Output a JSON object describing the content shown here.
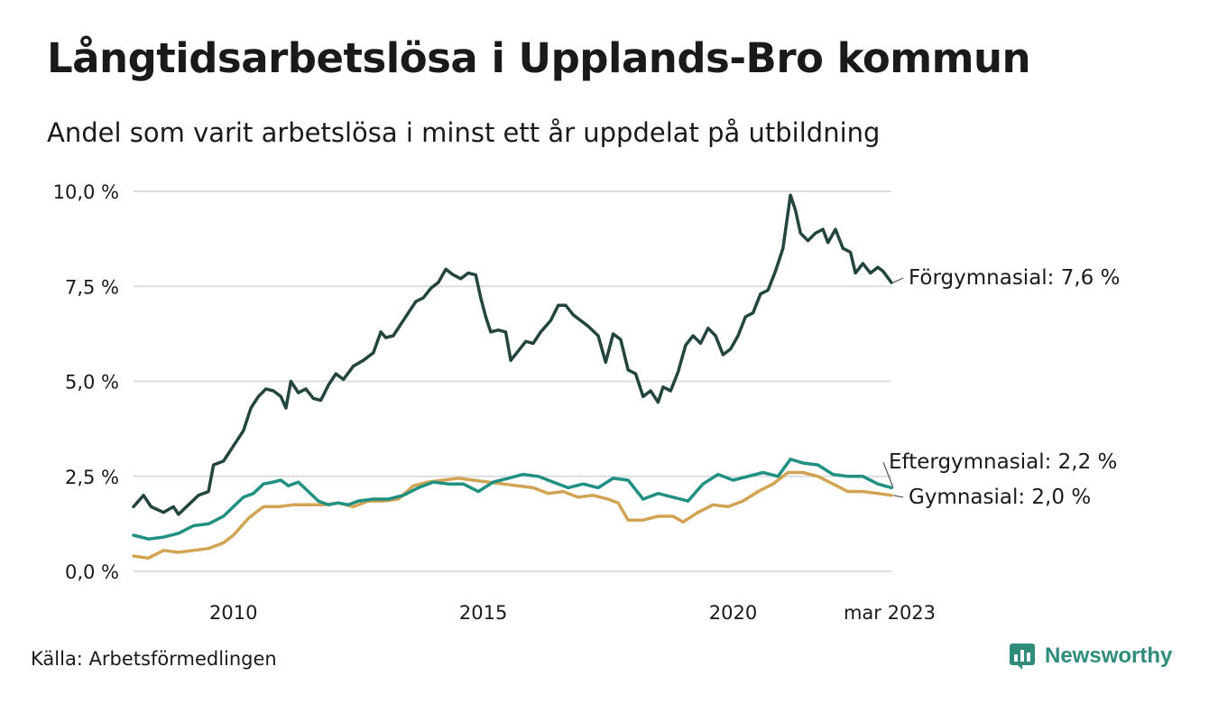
{
  "title": "Långtidsarbetslösa i Upplands-Bro kommun",
  "subtitle": "Andel som varit arbetslösa i minst ett år uppdelat på utbildning",
  "source": "Källa: Arbetsförmedlingen",
  "brand": "Newsworthy",
  "colors": {
    "forgymnasial": "#22453f",
    "eftergymnasial": "#1f9082",
    "gymnasial": "#d1a352",
    "grid": "#dddddd",
    "brand": "#2f8c7b"
  },
  "chart_data": {
    "type": "line",
    "y_ticks": [
      "0,0 %",
      "2,5 %",
      "5,0 %",
      "7,5 %",
      "10,0 %"
    ],
    "y_tick_values": [
      0,
      2.5,
      5,
      7.5,
      10
    ],
    "x_ticks": [
      "2010",
      "2015",
      "2020",
      "mar 2023"
    ],
    "x_tick_values": [
      2010.0,
      2015.0,
      2020.0,
      2023.17
    ],
    "xlim": [
      2008.0,
      2023.17
    ],
    "ylim": [
      0,
      10
    ],
    "grid": true,
    "series": [
      {
        "name": "Förgymnasial",
        "color_key": "forgymnasial",
        "end_label": "Förgymnasial: 7,6 %",
        "points": [
          [
            2008.0,
            1.7
          ],
          [
            2008.2,
            2.0
          ],
          [
            2008.35,
            1.7
          ],
          [
            2008.6,
            1.55
          ],
          [
            2008.8,
            1.7
          ],
          [
            2008.9,
            1.5
          ],
          [
            2009.1,
            1.75
          ],
          [
            2009.3,
            2.0
          ],
          [
            2009.5,
            2.1
          ],
          [
            2009.6,
            2.8
          ],
          [
            2009.8,
            2.9
          ],
          [
            2010.0,
            3.3
          ],
          [
            2010.2,
            3.7
          ],
          [
            2010.35,
            4.3
          ],
          [
            2010.5,
            4.6
          ],
          [
            2010.65,
            4.8
          ],
          [
            2010.8,
            4.75
          ],
          [
            2010.95,
            4.6
          ],
          [
            2011.05,
            4.3
          ],
          [
            2011.15,
            5.0
          ],
          [
            2011.3,
            4.7
          ],
          [
            2011.45,
            4.8
          ],
          [
            2011.6,
            4.55
          ],
          [
            2011.75,
            4.5
          ],
          [
            2011.9,
            4.9
          ],
          [
            2012.05,
            5.2
          ],
          [
            2012.2,
            5.05
          ],
          [
            2012.4,
            5.4
          ],
          [
            2012.6,
            5.55
          ],
          [
            2012.8,
            5.75
          ],
          [
            2012.95,
            6.3
          ],
          [
            2013.05,
            6.15
          ],
          [
            2013.2,
            6.2
          ],
          [
            2013.35,
            6.5
          ],
          [
            2013.5,
            6.8
          ],
          [
            2013.65,
            7.1
          ],
          [
            2013.8,
            7.2
          ],
          [
            2013.95,
            7.45
          ],
          [
            2014.1,
            7.6
          ],
          [
            2014.25,
            7.95
          ],
          [
            2014.4,
            7.8
          ],
          [
            2014.55,
            7.7
          ],
          [
            2014.7,
            7.85
          ],
          [
            2014.85,
            7.8
          ],
          [
            2014.95,
            7.2
          ],
          [
            2015.05,
            6.7
          ],
          [
            2015.15,
            6.3
          ],
          [
            2015.3,
            6.35
          ],
          [
            2015.45,
            6.3
          ],
          [
            2015.55,
            5.55
          ],
          [
            2015.7,
            5.8
          ],
          [
            2015.85,
            6.05
          ],
          [
            2016.0,
            6.0
          ],
          [
            2016.15,
            6.3
          ],
          [
            2016.35,
            6.6
          ],
          [
            2016.5,
            7.0
          ],
          [
            2016.65,
            7.0
          ],
          [
            2016.8,
            6.75
          ],
          [
            2016.95,
            6.6
          ],
          [
            2017.1,
            6.45
          ],
          [
            2017.3,
            6.2
          ],
          [
            2017.45,
            5.5
          ],
          [
            2017.6,
            6.25
          ],
          [
            2017.75,
            6.1
          ],
          [
            2017.9,
            5.3
          ],
          [
            2018.05,
            5.2
          ],
          [
            2018.2,
            4.6
          ],
          [
            2018.35,
            4.75
          ],
          [
            2018.5,
            4.45
          ],
          [
            2018.6,
            4.85
          ],
          [
            2018.75,
            4.75
          ],
          [
            2018.9,
            5.25
          ],
          [
            2019.05,
            5.95
          ],
          [
            2019.2,
            6.2
          ],
          [
            2019.35,
            6.0
          ],
          [
            2019.5,
            6.4
          ],
          [
            2019.65,
            6.2
          ],
          [
            2019.8,
            5.7
          ],
          [
            2019.95,
            5.85
          ],
          [
            2020.1,
            6.2
          ],
          [
            2020.25,
            6.7
          ],
          [
            2020.4,
            6.8
          ],
          [
            2020.55,
            7.3
          ],
          [
            2020.7,
            7.4
          ],
          [
            2020.85,
            7.9
          ],
          [
            2021.0,
            8.5
          ],
          [
            2021.15,
            9.9
          ],
          [
            2021.25,
            9.5
          ],
          [
            2021.35,
            8.9
          ],
          [
            2021.5,
            8.7
          ],
          [
            2021.65,
            8.9
          ],
          [
            2021.8,
            9.0
          ],
          [
            2021.9,
            8.65
          ],
          [
            2022.05,
            9.0
          ],
          [
            2022.2,
            8.5
          ],
          [
            2022.35,
            8.4
          ],
          [
            2022.45,
            7.85
          ],
          [
            2022.6,
            8.1
          ],
          [
            2022.75,
            7.85
          ],
          [
            2022.9,
            8.0
          ],
          [
            2023.0,
            7.9
          ],
          [
            2023.17,
            7.6
          ]
        ]
      },
      {
        "name": "Eftergymnasial",
        "color_key": "eftergymnasial",
        "end_label": "Eftergymnasial: 2,2 %",
        "points": [
          [
            2008.0,
            0.95
          ],
          [
            2008.3,
            0.85
          ],
          [
            2008.6,
            0.9
          ],
          [
            2008.9,
            1.0
          ],
          [
            2009.2,
            1.2
          ],
          [
            2009.5,
            1.25
          ],
          [
            2009.8,
            1.45
          ],
          [
            2010.0,
            1.7
          ],
          [
            2010.2,
            1.95
          ],
          [
            2010.4,
            2.05
          ],
          [
            2010.6,
            2.3
          ],
          [
            2010.8,
            2.35
          ],
          [
            2010.95,
            2.4
          ],
          [
            2011.1,
            2.25
          ],
          [
            2011.3,
            2.35
          ],
          [
            2011.5,
            2.1
          ],
          [
            2011.7,
            1.85
          ],
          [
            2011.9,
            1.75
          ],
          [
            2012.1,
            1.8
          ],
          [
            2012.3,
            1.75
          ],
          [
            2012.5,
            1.85
          ],
          [
            2012.8,
            1.9
          ],
          [
            2013.1,
            1.9
          ],
          [
            2013.4,
            2.0
          ],
          [
            2013.7,
            2.2
          ],
          [
            2014.0,
            2.35
          ],
          [
            2014.3,
            2.3
          ],
          [
            2014.6,
            2.3
          ],
          [
            2014.9,
            2.1
          ],
          [
            2015.2,
            2.35
          ],
          [
            2015.5,
            2.45
          ],
          [
            2015.8,
            2.55
          ],
          [
            2016.1,
            2.5
          ],
          [
            2016.4,
            2.35
          ],
          [
            2016.7,
            2.2
          ],
          [
            2017.0,
            2.3
          ],
          [
            2017.3,
            2.2
          ],
          [
            2017.6,
            2.45
          ],
          [
            2017.9,
            2.4
          ],
          [
            2018.2,
            1.9
          ],
          [
            2018.5,
            2.05
          ],
          [
            2018.8,
            1.95
          ],
          [
            2019.1,
            1.85
          ],
          [
            2019.4,
            2.3
          ],
          [
            2019.7,
            2.55
          ],
          [
            2020.0,
            2.4
          ],
          [
            2020.3,
            2.5
          ],
          [
            2020.6,
            2.6
          ],
          [
            2020.9,
            2.5
          ],
          [
            2021.15,
            2.95
          ],
          [
            2021.4,
            2.85
          ],
          [
            2021.7,
            2.8
          ],
          [
            2022.0,
            2.55
          ],
          [
            2022.3,
            2.5
          ],
          [
            2022.6,
            2.5
          ],
          [
            2022.9,
            2.3
          ],
          [
            2023.17,
            2.2
          ]
        ]
      },
      {
        "name": "Gymnasial",
        "color_key": "gymnasial",
        "end_label": "Gymnasial: 2,0 %",
        "points": [
          [
            2008.0,
            0.4
          ],
          [
            2008.3,
            0.35
          ],
          [
            2008.6,
            0.55
          ],
          [
            2008.9,
            0.5
          ],
          [
            2009.2,
            0.55
          ],
          [
            2009.5,
            0.6
          ],
          [
            2009.8,
            0.75
          ],
          [
            2010.0,
            0.95
          ],
          [
            2010.3,
            1.4
          ],
          [
            2010.6,
            1.7
          ],
          [
            2010.9,
            1.7
          ],
          [
            2011.2,
            1.75
          ],
          [
            2011.5,
            1.75
          ],
          [
            2011.8,
            1.75
          ],
          [
            2012.1,
            1.8
          ],
          [
            2012.4,
            1.7
          ],
          [
            2012.7,
            1.85
          ],
          [
            2013.0,
            1.85
          ],
          [
            2013.3,
            1.9
          ],
          [
            2013.6,
            2.25
          ],
          [
            2013.9,
            2.35
          ],
          [
            2014.2,
            2.4
          ],
          [
            2014.5,
            2.45
          ],
          [
            2014.8,
            2.4
          ],
          [
            2015.1,
            2.35
          ],
          [
            2015.4,
            2.3
          ],
          [
            2015.7,
            2.25
          ],
          [
            2016.0,
            2.2
          ],
          [
            2016.3,
            2.05
          ],
          [
            2016.6,
            2.1
          ],
          [
            2016.9,
            1.95
          ],
          [
            2017.2,
            2.0
          ],
          [
            2017.5,
            1.9
          ],
          [
            2017.7,
            1.8
          ],
          [
            2017.9,
            1.35
          ],
          [
            2018.2,
            1.35
          ],
          [
            2018.5,
            1.45
          ],
          [
            2018.8,
            1.45
          ],
          [
            2019.0,
            1.3
          ],
          [
            2019.3,
            1.55
          ],
          [
            2019.6,
            1.75
          ],
          [
            2019.9,
            1.7
          ],
          [
            2020.2,
            1.85
          ],
          [
            2020.5,
            2.1
          ],
          [
            2020.8,
            2.3
          ],
          [
            2021.1,
            2.6
          ],
          [
            2021.4,
            2.6
          ],
          [
            2021.7,
            2.5
          ],
          [
            2022.0,
            2.3
          ],
          [
            2022.3,
            2.1
          ],
          [
            2022.6,
            2.1
          ],
          [
            2022.9,
            2.05
          ],
          [
            2023.17,
            2.0
          ]
        ]
      }
    ]
  }
}
